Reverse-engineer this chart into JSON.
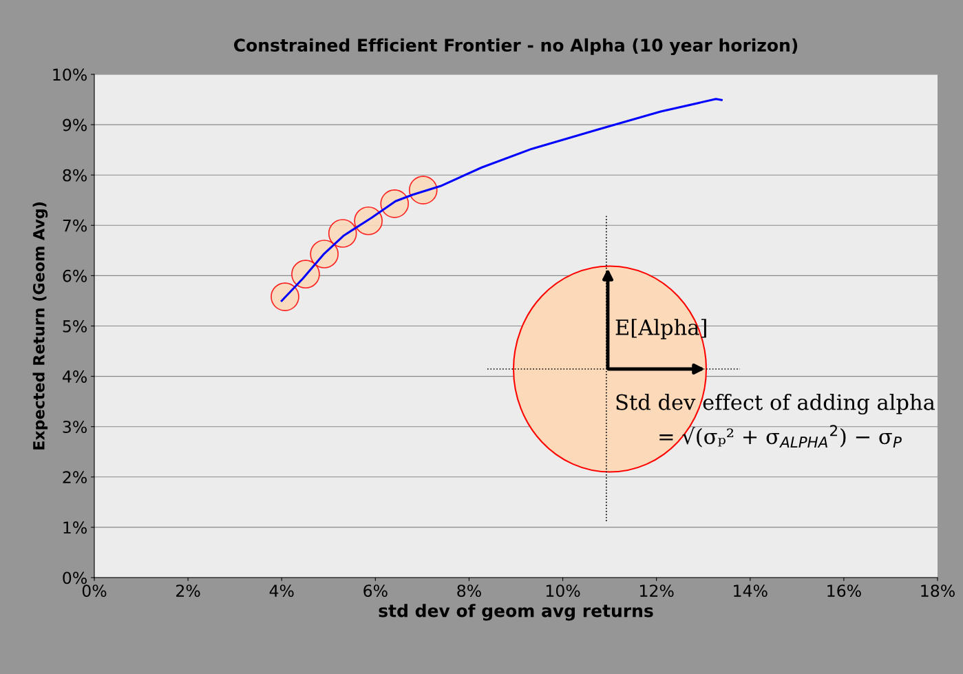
{
  "chart_data": {
    "type": "line",
    "title": "Constrained Efficient Frontier - no Alpha (10 year horizon)",
    "xlabel": "std dev of geom avg returns",
    "ylabel": "Expected Return (Geom Avg)",
    "xlim": [
      0,
      18
    ],
    "xticks": [
      {
        "value": 0,
        "label": "0%"
      },
      {
        "value": 2,
        "label": "2%"
      },
      {
        "value": 4,
        "label": "4%"
      },
      {
        "value": 6,
        "label": "6%"
      },
      {
        "value": 8,
        "label": "8%"
      },
      {
        "value": 10,
        "label": "10%"
      },
      {
        "value": 12,
        "label": "12%"
      },
      {
        "value": 14,
        "label": "14%"
      },
      {
        "value": 16,
        "label": "16%"
      },
      {
        "value": 18,
        "label": "18%"
      }
    ],
    "ylim": [
      0,
      10
    ],
    "yticks": [
      {
        "value": 0,
        "label": "0%"
      },
      {
        "value": 1,
        "label": "1%"
      },
      {
        "value": 2,
        "label": "2%"
      },
      {
        "value": 3,
        "label": "3%"
      },
      {
        "value": 4,
        "label": "4%"
      },
      {
        "value": 5,
        "label": "5%"
      },
      {
        "value": 6,
        "label": "6%"
      },
      {
        "value": 7,
        "label": "7%"
      },
      {
        "value": 8,
        "label": "8%"
      },
      {
        "value": 9,
        "label": "9%"
      },
      {
        "value": 10,
        "label": "10%"
      }
    ],
    "grid": "y",
    "legend": false,
    "series": [
      {
        "type": "scatter",
        "color": "#ff0000",
        "marker": "circle",
        "x": [
          4.07,
          4.51,
          4.91,
          5.3,
          5.85,
          6.41,
          7.02
        ],
        "values": [
          5.58,
          6.03,
          6.43,
          6.84,
          7.09,
          7.43,
          7.7
        ]
      },
      {
        "color": "#0000ff",
        "marker": "none",
        "line_style": "solid",
        "x": [
          4.0,
          4.45,
          4.89,
          5.33,
          5.92,
          6.43,
          6.8,
          7.39,
          8.27,
          9.34,
          10.77,
          12.09,
          13.27,
          13.39
        ],
        "values": [
          5.5,
          5.94,
          6.42,
          6.8,
          7.15,
          7.48,
          7.61,
          7.78,
          8.15,
          8.52,
          8.91,
          9.26,
          9.51,
          9.49
        ]
      }
    ],
    "ref_lines": [
      {
        "axis": "x",
        "value": 10.93,
        "color": "#000000",
        "line_style": "dotted"
      }
    ],
    "annotations": [
      "E[Alpha]",
      "Std dev effect of adding alpha",
      "= √(σₚ² + σ$_{ALPHA}$$^{2}$) − σ$_{P}$"
    ]
  }
}
